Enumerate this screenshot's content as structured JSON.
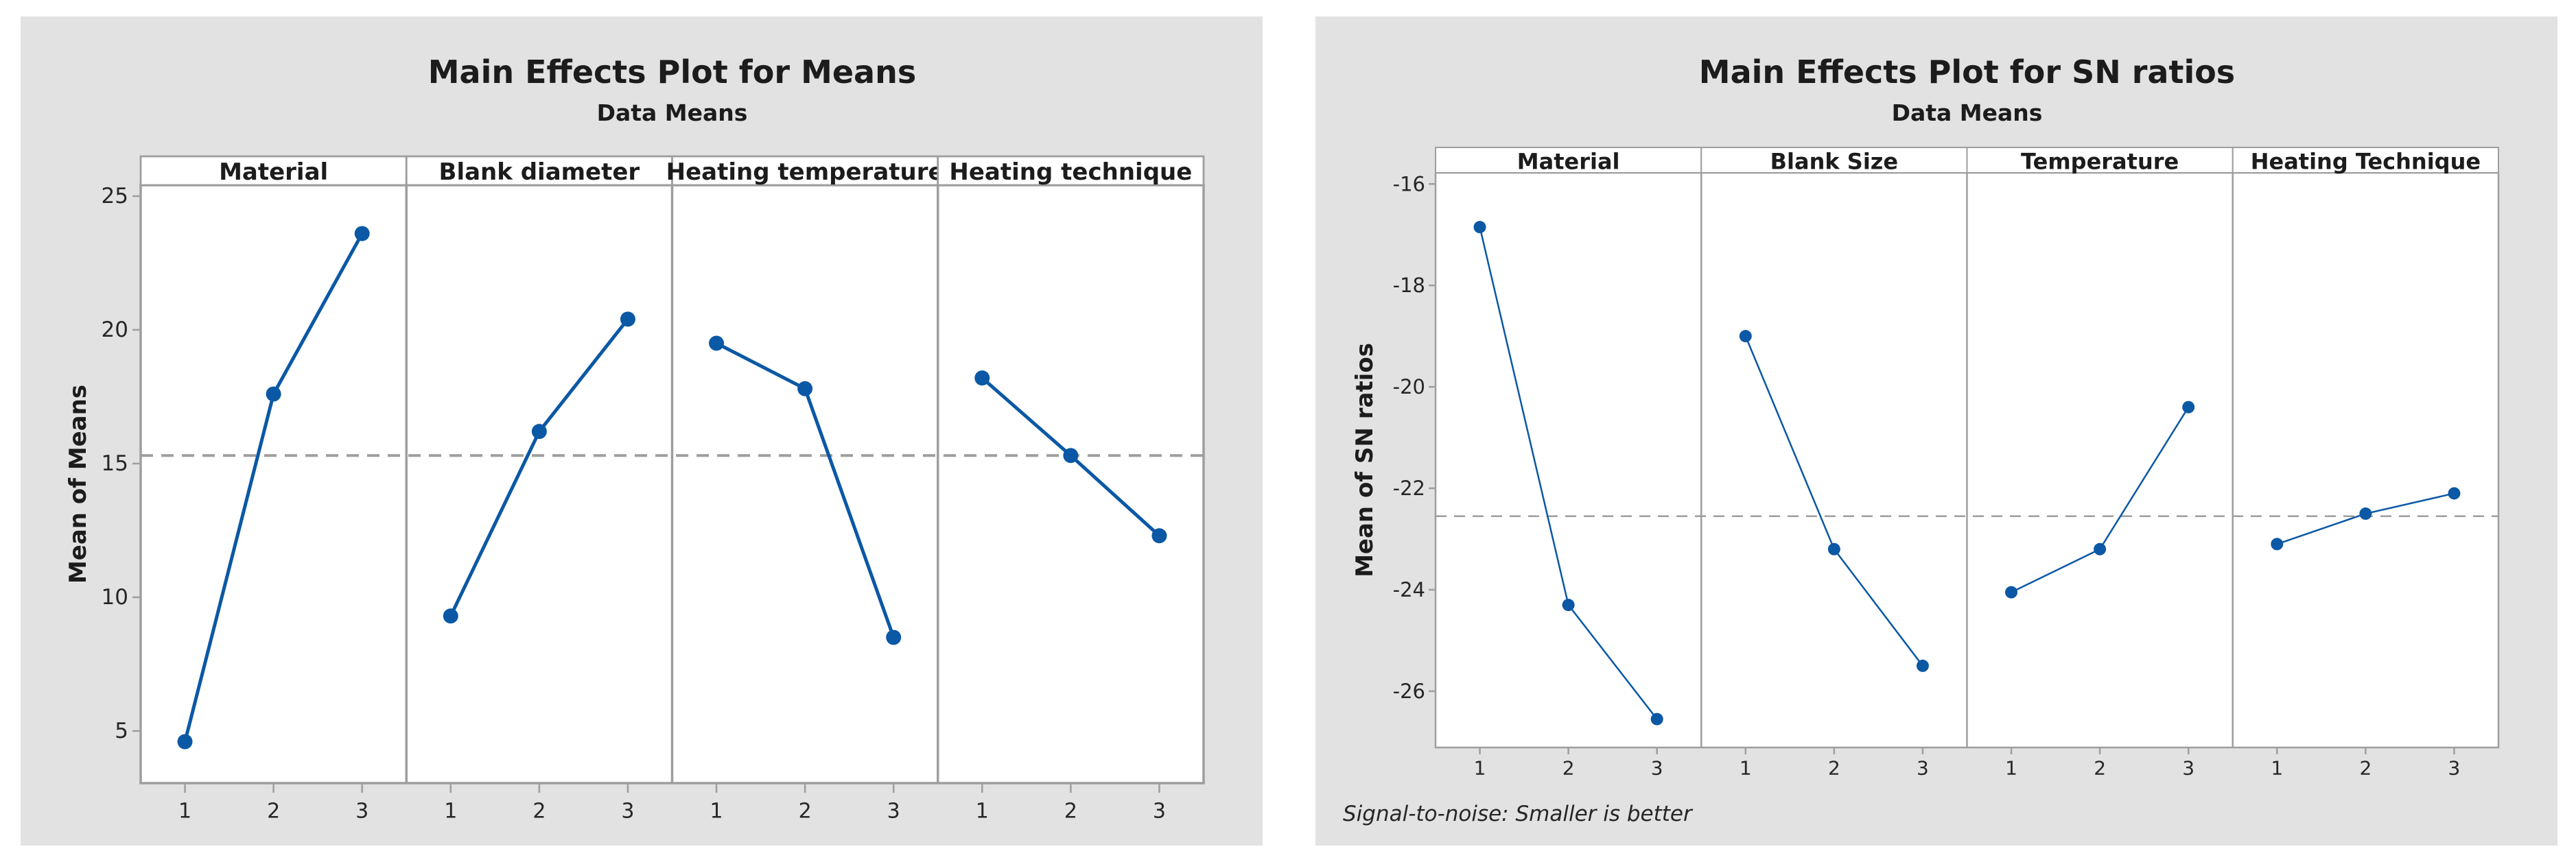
{
  "page": {
    "background": "#ffffff",
    "card_background": "#e2e2e2",
    "frame_color": "#9e9e9e",
    "text_color": "#1c1c1c"
  },
  "chart_data": [
    {
      "type": "line",
      "title": "Main Effects Plot for Means",
      "subtitle": "Data Means",
      "ylabel": "Mean of Means",
      "categories": [
        "1",
        "2",
        "3"
      ],
      "panels": [
        {
          "label": "Material",
          "values": [
            4.6,
            17.6,
            23.6
          ]
        },
        {
          "label": "Blank diameter",
          "values": [
            9.3,
            16.2,
            20.4
          ]
        },
        {
          "label": "Heating temperature",
          "values": [
            19.5,
            17.8,
            8.5
          ]
        },
        {
          "label": "Heating technique",
          "values": [
            18.2,
            15.3,
            12.3
          ]
        }
      ],
      "yticks": [
        25,
        20,
        15,
        10,
        5
      ],
      "ylim": [
        3.05,
        25.41
      ],
      "reference_line": 15.3,
      "footnote": "",
      "grid": false,
      "legend": "none",
      "line_color": "#0b58a5",
      "line_width": 5,
      "marker_radius": 11
    },
    {
      "type": "line",
      "title": "Main Effects Plot for SN ratios",
      "subtitle": "Data Means",
      "ylabel": "Mean of SN ratios",
      "categories": [
        "1",
        "2",
        "3"
      ],
      "panels": [
        {
          "label": "Material",
          "values": [
            -16.85,
            -24.3,
            -26.55
          ]
        },
        {
          "label": "Blank Size",
          "values": [
            -19.0,
            -23.2,
            -25.5
          ]
        },
        {
          "label": "Temperature",
          "values": [
            -24.05,
            -23.2,
            -20.4
          ]
        },
        {
          "label": "Heating Technique",
          "values": [
            -23.1,
            -22.5,
            -22.1
          ]
        }
      ],
      "yticks": [
        -16,
        -18,
        -20,
        -22,
        -24,
        -26
      ],
      "ylim": [
        -27.11,
        -15.78
      ],
      "reference_line": -22.55,
      "footnote": "Signal-to-noise: Smaller is better",
      "grid": false,
      "legend": "none",
      "line_color": "#0b58a5",
      "line_width": 2.5,
      "marker_radius": 9
    }
  ]
}
